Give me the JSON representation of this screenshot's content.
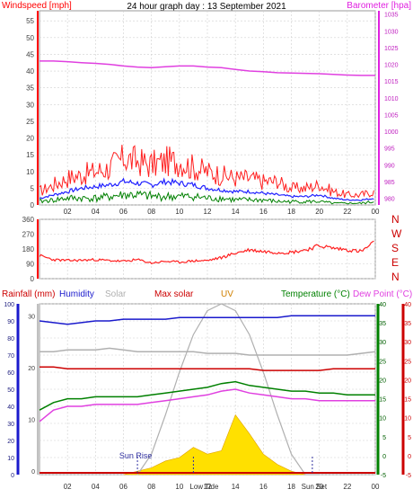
{
  "title": "24 hour graph day : 13 September 2021",
  "chart_data": [
    {
      "type": "line",
      "panel": "wind-baro",
      "left_axis_label": "Windspeed [mph]",
      "right_axis_label": "Barometer [hpa]",
      "left_ticks": [
        "0",
        "5",
        "10",
        "15",
        "20",
        "25",
        "30",
        "35",
        "40",
        "45",
        "50",
        "55"
      ],
      "left_ylim": [
        0,
        58
      ],
      "right_ticks": [
        "980",
        "985",
        "990",
        "995",
        "1000",
        "1005",
        "1010",
        "1015",
        "1020",
        "1025",
        "1030",
        "1035"
      ],
      "right_ylim": [
        978,
        1036
      ],
      "x_ticks": [
        "02",
        "04",
        "06",
        "08",
        "10",
        "12",
        "14",
        "16",
        "18",
        "20",
        "22",
        "00"
      ],
      "x_range_hours": [
        0,
        24
      ],
      "grid": true,
      "colors": {
        "barometer": "#e040e0",
        "gust": "#ff2020",
        "avg": "#2020ff",
        "wind": "#008000",
        "left_axis": "#ff0000",
        "right_axis": "#e020e0"
      },
      "series": [
        {
          "key": "barometer",
          "x": [
            0,
            1,
            2,
            3,
            4,
            5,
            6,
            7,
            8,
            9,
            10,
            11,
            12,
            13,
            14,
            15,
            16,
            17,
            18,
            19,
            20,
            21,
            22,
            23,
            24
          ],
          "values": [
            1021,
            1021,
            1020.8,
            1020.5,
            1020.3,
            1020,
            1019.5,
            1019.2,
            1019,
            1019.3,
            1019.5,
            1019.5,
            1019.2,
            1019,
            1018.5,
            1018,
            1017.8,
            1017.5,
            1017.4,
            1017.3,
            1017.2,
            1017,
            1016.8,
            1016.7,
            1016.7
          ]
        },
        {
          "key": "gust",
          "x": [
            0,
            1,
            2,
            3,
            4,
            5,
            6,
            7,
            8,
            9,
            10,
            11,
            12,
            13,
            14,
            15,
            16,
            17,
            18,
            19,
            20,
            21,
            22,
            23,
            24
          ],
          "values": [
            4,
            6,
            8,
            9,
            10,
            11,
            14,
            13,
            12,
            13,
            13,
            11,
            10,
            9,
            8,
            8,
            7,
            7,
            5,
            5,
            6,
            4,
            3,
            3,
            4
          ]
        },
        {
          "key": "avg",
          "x": [
            0,
            1,
            2,
            3,
            4,
            5,
            6,
            7,
            8,
            9,
            10,
            11,
            12,
            13,
            14,
            15,
            16,
            17,
            18,
            19,
            20,
            21,
            22,
            23,
            24
          ],
          "values": [
            2,
            3,
            4,
            5,
            5.5,
            6,
            7,
            6.5,
            6,
            7,
            6.5,
            6,
            5,
            4.5,
            4,
            4,
            3.5,
            3,
            2.5,
            2.5,
            3,
            2,
            1.5,
            1.5,
            2
          ]
        },
        {
          "key": "wind",
          "x": [
            0,
            1,
            2,
            3,
            4,
            5,
            6,
            7,
            8,
            9,
            10,
            11,
            12,
            13,
            14,
            15,
            16,
            17,
            18,
            19,
            20,
            21,
            22,
            23,
            24
          ],
          "values": [
            1,
            1.5,
            2,
            2,
            2,
            2.5,
            3,
            3,
            2.5,
            2.5,
            2.5,
            2.5,
            2,
            2,
            1.5,
            1.5,
            1.5,
            1,
            1,
            1,
            1,
            0.5,
            0.5,
            0.5,
            1
          ]
        }
      ]
    },
    {
      "type": "line",
      "panel": "wind-direction",
      "left_ticks": [
        "0",
        "90",
        "180",
        "270",
        "360"
      ],
      "left_ylim": [
        0,
        360
      ],
      "right_labels": [
        "N",
        "W",
        "S",
        "E",
        "N"
      ],
      "x_range_hours": [
        0,
        24
      ],
      "grid": true,
      "colors": {
        "direction": "#ff2020",
        "axis": "#ff0000"
      },
      "series": [
        {
          "key": "direction",
          "x": [
            0,
            1,
            2,
            3,
            4,
            5,
            6,
            7,
            8,
            9,
            10,
            11,
            12,
            13,
            14,
            15,
            16,
            17,
            18,
            19,
            20,
            21,
            22,
            23,
            24
          ],
          "values": [
            140,
            115,
            110,
            112,
            115,
            110,
            105,
            115,
            95,
            105,
            100,
            108,
            110,
            128,
            155,
            175,
            165,
            160,
            160,
            175,
            200,
            185,
            175,
            165,
            225
          ]
        }
      ]
    },
    {
      "type": "line",
      "panel": "rain-humidity-solar-temp",
      "legend": [
        {
          "key": "rainfall",
          "label": "Rainfall (mm)",
          "color": "#cc0000"
        },
        {
          "key": "humidity",
          "label": "Humidity",
          "color": "#1a1acc"
        },
        {
          "key": "solar",
          "label": "Solar",
          "color": "#b0b0b0"
        },
        {
          "key": "max_solar",
          "label": "Max solar",
          "color": "#cc0000"
        },
        {
          "key": "uv",
          "label": "UV",
          "color": "#d08000"
        },
        {
          "key": "temperature",
          "label": "Temperature (°C)",
          "color": "#008000"
        },
        {
          "key": "dew_point",
          "label": "Dew Point (°C)",
          "color": "#e040e0"
        }
      ],
      "humidity_ticks": [
        "0",
        "10",
        "20",
        "30",
        "40",
        "50",
        "60",
        "70",
        "80",
        "90",
        "100"
      ],
      "rain_ticks": [
        "0",
        "10",
        "20",
        "30"
      ],
      "temp_ticks": [
        "-5",
        "0",
        "5",
        "10",
        "15",
        "20",
        "25",
        "30",
        "35",
        "40"
      ],
      "temp_ylim": [
        -5,
        40
      ],
      "x_ticks": [
        "02",
        "04",
        "06",
        "08",
        "10",
        "12",
        "14",
        "16",
        "18",
        "20",
        "22",
        "00"
      ],
      "x_range_hours": [
        0,
        24
      ],
      "annotations": [
        {
          "label": "Sun Rise",
          "hour": 7
        },
        {
          "label": "Low Tide",
          "hour": 11
        },
        {
          "label": "Sun Set",
          "hour": 19.5
        }
      ],
      "series": [
        {
          "key": "humidity",
          "x": [
            0,
            1,
            2,
            3,
            4,
            5,
            6,
            7,
            8,
            9,
            10,
            11,
            12,
            13,
            14,
            15,
            16,
            17,
            18,
            19,
            20,
            21,
            22,
            23,
            24
          ],
          "values": [
            90,
            89,
            88,
            89,
            90,
            90,
            91,
            91,
            91,
            91,
            92,
            92,
            92,
            92,
            92,
            92,
            92,
            92,
            93,
            93,
            93,
            93,
            93,
            93,
            93
          ]
        },
        {
          "key": "solar_grey",
          "x": [
            0,
            1,
            2,
            3,
            4,
            5,
            6,
            7,
            8,
            9,
            10,
            11,
            12,
            13,
            14,
            15,
            16,
            17,
            18,
            19,
            20,
            21,
            22,
            23,
            24
          ],
          "values": [
            72,
            72,
            73,
            73,
            73,
            74,
            73,
            72,
            72,
            72,
            72,
            72,
            71,
            71,
            71,
            70,
            70,
            70,
            70,
            70,
            70,
            70,
            70,
            71,
            72
          ]
        },
        {
          "key": "rainfall_line",
          "x": [
            0,
            1,
            2,
            3,
            4,
            5,
            6,
            7,
            8,
            9,
            10,
            11,
            12,
            13,
            14,
            15,
            16,
            17,
            18,
            19,
            20,
            21,
            22,
            23,
            24
          ],
          "values": [
            63,
            63,
            62,
            62,
            62,
            62,
            62,
            62,
            62,
            62,
            62,
            62,
            62,
            62,
            62,
            62,
            61,
            61,
            61,
            61,
            61,
            62,
            62,
            62,
            62
          ]
        },
        {
          "key": "temperature",
          "x": [
            0,
            1,
            2,
            3,
            4,
            5,
            6,
            7,
            8,
            9,
            10,
            11,
            12,
            13,
            14,
            15,
            16,
            17,
            18,
            19,
            20,
            21,
            22,
            23,
            24
          ],
          "values": [
            12,
            14,
            15,
            15,
            15.5,
            15.5,
            15.5,
            15.5,
            16,
            16.5,
            17,
            17.5,
            18,
            19,
            19.5,
            18.5,
            18,
            17.5,
            17,
            17,
            16.5,
            16.5,
            16,
            16,
            16
          ]
        },
        {
          "key": "dew_point",
          "x": [
            0,
            1,
            2,
            3,
            4,
            5,
            6,
            7,
            8,
            9,
            10,
            11,
            12,
            13,
            14,
            15,
            16,
            17,
            18,
            19,
            20,
            21,
            22,
            23,
            24
          ],
          "values": [
            9,
            12,
            13,
            13,
            13.5,
            13.5,
            13.5,
            13.5,
            14,
            14.5,
            15,
            15.5,
            16,
            17,
            17.5,
            16.5,
            16,
            15.5,
            15,
            15,
            14.5,
            14.5,
            14.5,
            14.5,
            14.5
          ]
        },
        {
          "key": "max_solar",
          "x": [
            7,
            8,
            9,
            10,
            11,
            12,
            13,
            14,
            15,
            16,
            17,
            18,
            19,
            20
          ],
          "values": [
            0,
            12,
            35,
            60,
            82,
            96,
            100,
            96,
            82,
            60,
            35,
            12,
            0,
            0
          ]
        },
        {
          "key": "solar_yellow",
          "x": [
            6,
            7,
            8,
            9,
            10,
            11,
            12,
            13,
            14,
            15,
            16,
            17,
            18,
            19
          ],
          "values": [
            0,
            2,
            4,
            8,
            10,
            16,
            12,
            14,
            35,
            24,
            12,
            6,
            2,
            0
          ]
        }
      ]
    }
  ]
}
